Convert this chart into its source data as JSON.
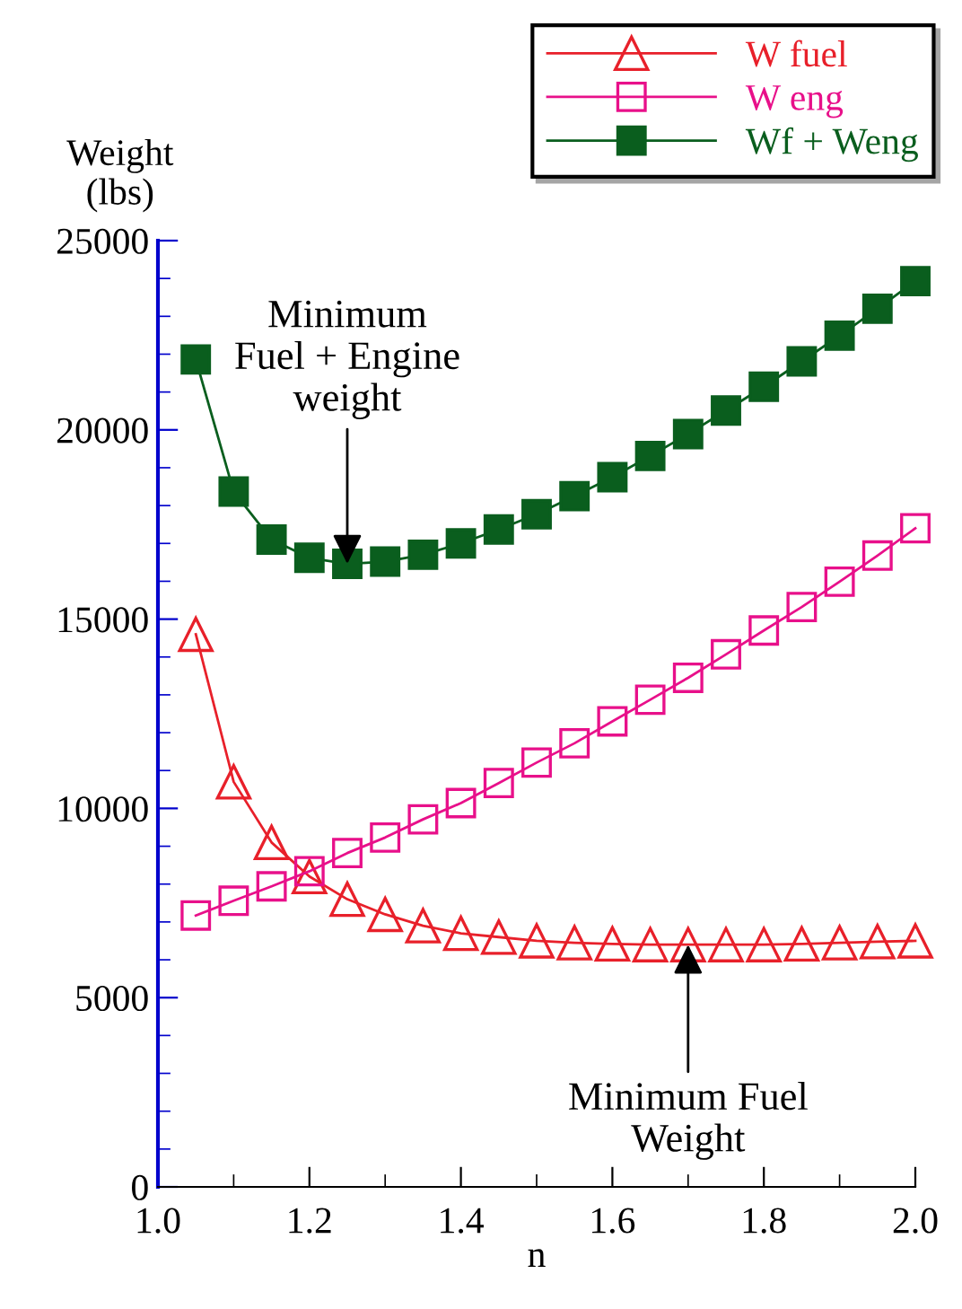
{
  "chart_data": {
    "type": "line",
    "xlabel": "n",
    "ylabel": "Weight\n(lbs)",
    "x": [
      1.05,
      1.1,
      1.15,
      1.2,
      1.25,
      1.3,
      1.35,
      1.4,
      1.45,
      1.5,
      1.55,
      1.6,
      1.65,
      1.7,
      1.75,
      1.8,
      1.85,
      1.9,
      1.95,
      2.0
    ],
    "series": [
      {
        "name": "W fuel",
        "color": "#e8202a",
        "marker": "triangle",
        "values": [
          14600,
          10700,
          9100,
          8200,
          7600,
          7200,
          6900,
          6700,
          6600,
          6500,
          6450,
          6420,
          6400,
          6400,
          6400,
          6400,
          6420,
          6450,
          6480,
          6500
        ]
      },
      {
        "name": "W eng",
        "color": "#e8108a",
        "marker": "square",
        "values": [
          7170,
          7560,
          7940,
          8340,
          8820,
          9230,
          9710,
          10140,
          10670,
          11210,
          11720,
          12300,
          12870,
          13450,
          14070,
          14700,
          15320,
          15990,
          16680,
          17400
        ]
      },
      {
        "name": "Wf + Weng",
        "color": "#0a5e1e",
        "marker": "square",
        "values": [
          21860,
          18370,
          17100,
          16620,
          16460,
          16520,
          16700,
          17000,
          17370,
          17770,
          18250,
          18750,
          19310,
          19890,
          20510,
          21140,
          21810,
          22490,
          23200,
          23930
        ]
      }
    ],
    "xlim": [
      1.0,
      2.0
    ],
    "ylim": [
      0,
      25000
    ],
    "xticks": [
      {
        "value": 1.0,
        "label": "1.0"
      },
      {
        "value": 1.1,
        "label": null
      },
      1.2,
      {
        "value": 1.3,
        "label": null
      },
      1.4,
      {
        "value": 1.5,
        "label": null
      },
      1.6,
      {
        "value": 1.7,
        "label": null
      },
      1.8,
      {
        "value": 1.9,
        "label": null
      },
      {
        "value": 2.0,
        "label": "2.0"
      }
    ],
    "yticks": [
      0,
      {
        "value": 1000,
        "label": null
      },
      {
        "value": 2000,
        "label": null
      },
      {
        "value": 3000,
        "label": null
      },
      {
        "value": 4000,
        "label": null
      },
      5000,
      {
        "value": 6000,
        "label": null
      },
      {
        "value": 7000,
        "label": null
      },
      {
        "value": 8000,
        "label": null
      },
      {
        "value": 9000,
        "label": null
      },
      10000,
      {
        "value": 11000,
        "label": null
      },
      {
        "value": 12000,
        "label": null
      },
      {
        "value": 13000,
        "label": null
      },
      {
        "value": 14000,
        "label": null
      },
      15000,
      {
        "value": 16000,
        "label": null
      },
      {
        "value": 17000,
        "label": null
      },
      {
        "value": 18000,
        "label": null
      },
      {
        "value": 19000,
        "label": null
      },
      20000,
      {
        "value": 21000,
        "label": null
      },
      {
        "value": 22000,
        "label": null
      },
      {
        "value": 23000,
        "label": null
      },
      {
        "value": 24000,
        "label": null
      },
      25000
    ],
    "annotations": [
      {
        "text": "Minimum\nFuel + Engine\nweight",
        "x": 1.25,
        "y": 16460
      },
      {
        "text": "Minimum Fuel\nWeight",
        "x": 1.7,
        "y": 6400
      }
    ],
    "legend": "top right",
    "grid": false,
    "line_style": "solid"
  }
}
